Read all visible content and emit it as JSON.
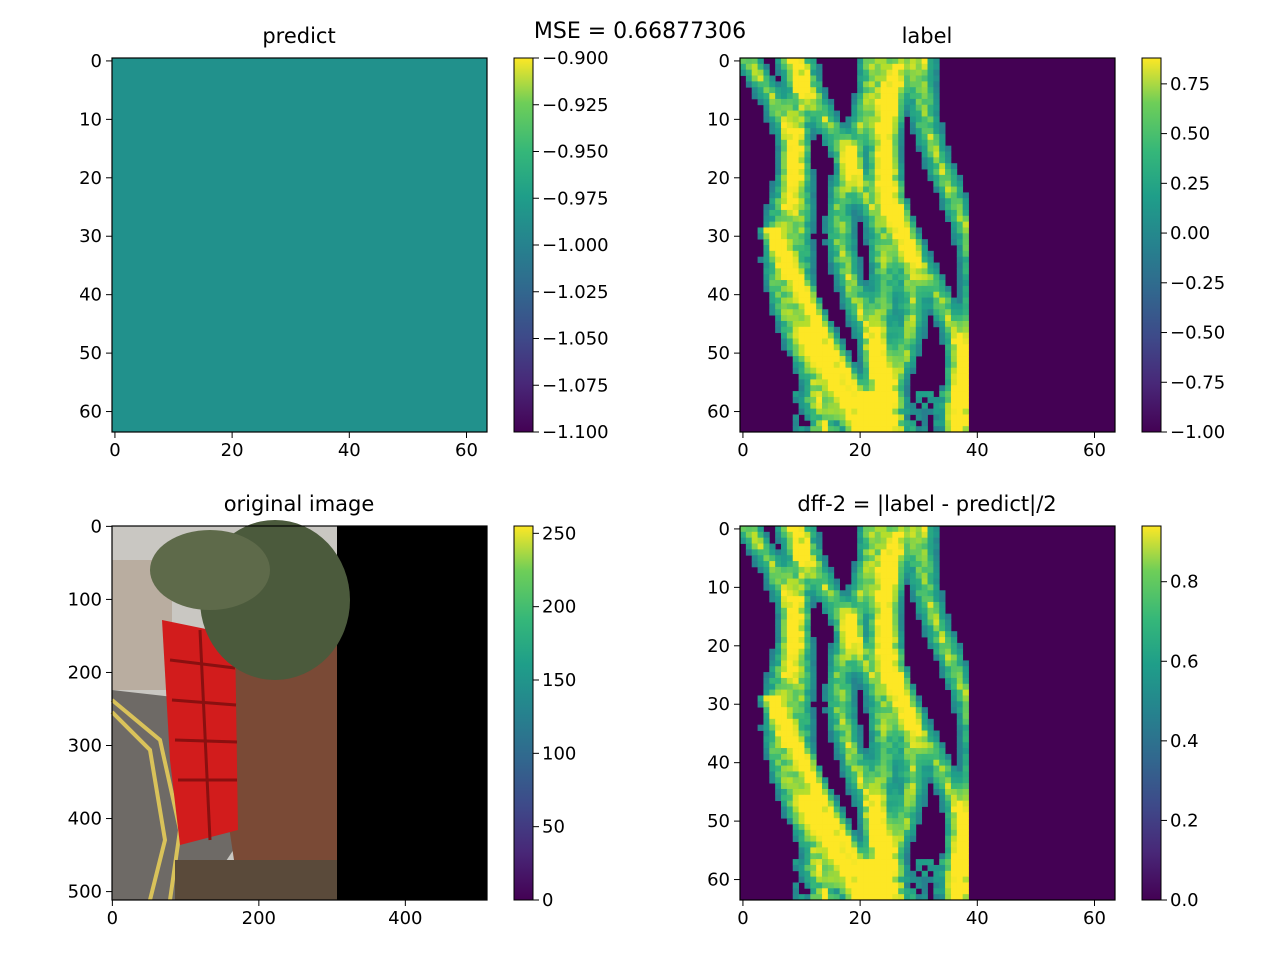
{
  "suptitle": "MSE = 0.66877306",
  "chart_data": [
    {
      "type": "heatmap",
      "title": "predict",
      "xlim": [
        -0.5,
        63.5
      ],
      "ylim": [
        63.5,
        -0.5
      ],
      "xticks": [
        "0",
        "20",
        "40",
        "60"
      ],
      "yticks": [
        "0",
        "10",
        "20",
        "30",
        "40",
        "50",
        "60"
      ],
      "uniform_value": -1.0,
      "uniform_color": "#21918c",
      "colorbar": {
        "range": [
          -1.1,
          -0.9
        ],
        "ticks": [
          "−0.900",
          "−0.925",
          "−0.950",
          "−0.975",
          "−1.000",
          "−1.025",
          "−1.050",
          "−1.075",
          "−1.100"
        ]
      }
    },
    {
      "type": "heatmap",
      "title": "label",
      "xlim": [
        -0.5,
        63.5
      ],
      "ylim": [
        63.5,
        -0.5
      ],
      "xticks": [
        "0",
        "20",
        "40",
        "60"
      ],
      "yticks": [
        "0",
        "10",
        "20",
        "30",
        "40",
        "50",
        "60"
      ],
      "background_value": -1.0,
      "content_columns": [
        0,
        38
      ],
      "colorbar": {
        "range": [
          -1.0,
          0.88
        ],
        "ticks": [
          "0.75",
          "0.50",
          "0.25",
          "0.00",
          "−0.25",
          "−0.50",
          "−0.75",
          "−1.00"
        ]
      }
    },
    {
      "type": "image",
      "title": "original image",
      "xlim": [
        -0.5,
        511.5
      ],
      "ylim": [
        511.5,
        -0.5
      ],
      "xticks": [
        "0",
        "200",
        "400"
      ],
      "yticks": [
        "0",
        "100",
        "200",
        "300",
        "400",
        "500"
      ],
      "photo_width": 306,
      "colorbar": {
        "range": [
          0,
          255
        ],
        "ticks": [
          "250",
          "200",
          "150",
          "100",
          "50",
          "0"
        ]
      }
    },
    {
      "type": "heatmap",
      "title": "dff-2 = |label - predict|/2",
      "xlim": [
        -0.5,
        63.5
      ],
      "ylim": [
        63.5,
        -0.5
      ],
      "xticks": [
        "0",
        "20",
        "40",
        "60"
      ],
      "yticks": [
        "0",
        "10",
        "20",
        "30",
        "40",
        "50",
        "60"
      ],
      "background_value": 0.0,
      "content_columns": [
        0,
        38
      ],
      "colorbar": {
        "range": [
          0,
          0.94
        ],
        "ticks": [
          "0.8",
          "0.6",
          "0.4",
          "0.2",
          "0.0"
        ]
      }
    }
  ]
}
